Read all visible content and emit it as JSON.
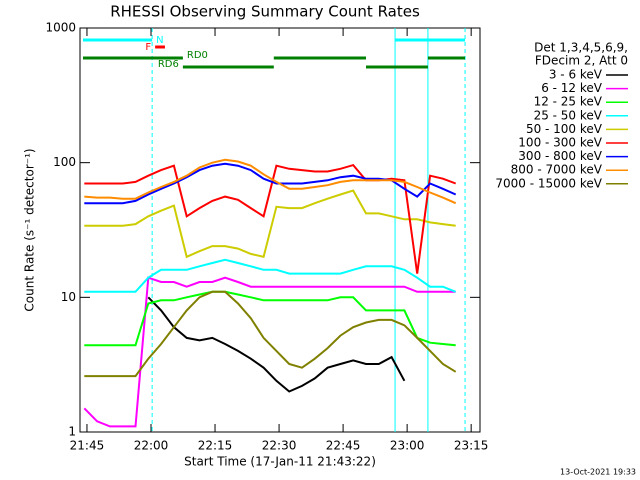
{
  "chart_data": {
    "type": "line",
    "title": "RHESSI Observing Summary Count Rates",
    "xlabel": "Start Time (17-Jan-11 21:43:22)",
    "ylabel": "Count Rate (s⁻¹ detector⁻¹)",
    "legend_header": [
      "Det 1,3,4,5,6,9,",
      "FDecim 2, Att 0"
    ],
    "footer": "13-Oct-2021 19:33",
    "log_y": true,
    "xlim": [
      0,
      93.7
    ],
    "ylim": [
      1,
      1000
    ],
    "xticks": [
      {
        "value": 1.63,
        "label": "21:45"
      },
      {
        "value": 16.63,
        "label": "22:00"
      },
      {
        "value": 31.63,
        "label": "22:15"
      },
      {
        "value": 46.63,
        "label": "22:30"
      },
      {
        "value": 61.63,
        "label": "22:45"
      },
      {
        "value": 76.63,
        "label": "23:00"
      },
      {
        "value": 91.63,
        "label": "23:15"
      }
    ],
    "yticks": [
      1,
      10,
      100,
      1000
    ],
    "x": [
      1,
      4,
      7,
      10,
      13,
      16,
      19,
      22,
      25,
      28,
      31,
      34,
      37,
      40,
      43,
      46,
      49,
      52,
      55,
      58,
      61,
      64,
      67,
      70,
      73,
      76,
      79,
      82,
      85,
      88
    ],
    "series": [
      {
        "name": "3 - 6 keV",
        "color": "#000000",
        "values": [
          null,
          null,
          null,
          null,
          null,
          10,
          8,
          6,
          5,
          4.8,
          5,
          4.5,
          4,
          3.5,
          3,
          2.4,
          2,
          2.2,
          2.5,
          3,
          3.2,
          3.4,
          3.2,
          3.2,
          3.6,
          2.4,
          null,
          null,
          null,
          null
        ]
      },
      {
        "name": "6 - 12 keV",
        "color": "#ff00ff",
        "values": [
          1.5,
          1.2,
          1.1,
          1.1,
          1.1,
          14,
          13,
          13,
          12,
          13,
          13,
          14,
          13,
          12,
          12,
          12,
          12,
          12,
          12,
          12,
          12,
          12,
          12,
          12,
          12,
          12,
          11,
          11,
          11,
          11
        ]
      },
      {
        "name": "12 - 25 keV",
        "color": "#00ff00",
        "values": [
          4.4,
          4.4,
          4.4,
          4.4,
          4.4,
          9,
          9.5,
          9.5,
          10,
          10.5,
          11,
          11,
          10.5,
          10,
          9.5,
          9.5,
          9.5,
          9.5,
          9.5,
          9.5,
          10,
          10,
          8,
          8,
          8,
          8,
          5,
          4.6,
          4.5,
          4.4
        ]
      },
      {
        "name": "25 - 50 keV",
        "color": "#00ffff",
        "values": [
          11,
          11,
          11,
          11,
          11,
          14,
          16,
          16,
          16,
          17,
          18,
          19,
          18,
          17,
          16,
          16,
          15,
          15,
          15,
          15,
          15,
          16,
          17,
          17,
          17,
          16,
          14,
          12,
          12,
          11
        ]
      },
      {
        "name": "50 - 100 keV",
        "color": "#cccc00",
        "values": [
          34,
          34,
          34,
          34,
          35,
          40,
          44,
          48,
          20,
          22,
          24,
          24,
          23,
          21,
          20,
          47,
          46,
          46,
          50,
          54,
          58,
          62,
          42,
          42,
          40,
          38,
          38,
          36,
          35,
          34
        ]
      },
      {
        "name": "100 - 300 keV",
        "color": "#ff0000",
        "values": [
          70,
          70,
          70,
          70,
          72,
          80,
          88,
          95,
          40,
          46,
          52,
          56,
          53,
          46,
          40,
          95,
          90,
          88,
          86,
          86,
          90,
          96,
          74,
          74,
          76,
          74,
          15,
          80,
          76,
          70
        ]
      },
      {
        "name": "300 - 800 keV",
        "color": "#0000ff",
        "values": [
          50,
          50,
          50,
          50,
          52,
          58,
          64,
          70,
          78,
          88,
          95,
          98,
          95,
          88,
          76,
          70,
          70,
          70,
          72,
          74,
          78,
          80,
          76,
          76,
          74,
          64,
          56,
          70,
          64,
          58
        ]
      },
      {
        "name": "800 - 7000 keV",
        "color": "#ff8c00",
        "values": [
          56,
          55,
          55,
          54,
          54,
          60,
          66,
          72,
          80,
          92,
          100,
          105,
          102,
          95,
          82,
          72,
          64,
          64,
          66,
          68,
          72,
          74,
          74,
          74,
          74,
          72,
          66,
          60,
          55,
          50
        ]
      },
      {
        "name": "7000 - 15000 keV",
        "color": "#808000",
        "values": [
          2.6,
          2.6,
          2.6,
          2.6,
          2.6,
          3.5,
          4.5,
          6,
          8,
          10,
          11,
          11,
          9,
          7,
          5,
          4,
          3.2,
          3,
          3.5,
          4.2,
          5.2,
          6,
          6.5,
          6.8,
          6.8,
          6.2,
          5,
          4,
          3.2,
          2.8
        ]
      }
    ],
    "flags": [
      {
        "label": "N",
        "color": "#00ffff",
        "intervals": [
          [
            0.7,
            16.9
          ],
          [
            73.8,
            90.2
          ]
        ]
      },
      {
        "label": "F",
        "color": "#ff0000",
        "intervals": [
          [
            17.6,
            19.9
          ]
        ]
      },
      {
        "label": "RD0",
        "color": "#008000",
        "intervals": [
          [
            0.7,
            24.1
          ],
          [
            45.4,
            67.0
          ],
          [
            81.5,
            90.2
          ]
        ]
      },
      {
        "label": "RD6",
        "color": "#008000",
        "intervals": [
          [
            24.1,
            45.4
          ],
          [
            67.0,
            81.5
          ]
        ]
      }
    ],
    "dashed_lines": [
      16.9,
      90.2
    ],
    "solid_lines": [
      73.8,
      81.5
    ],
    "vline_color": "#00ffff"
  }
}
